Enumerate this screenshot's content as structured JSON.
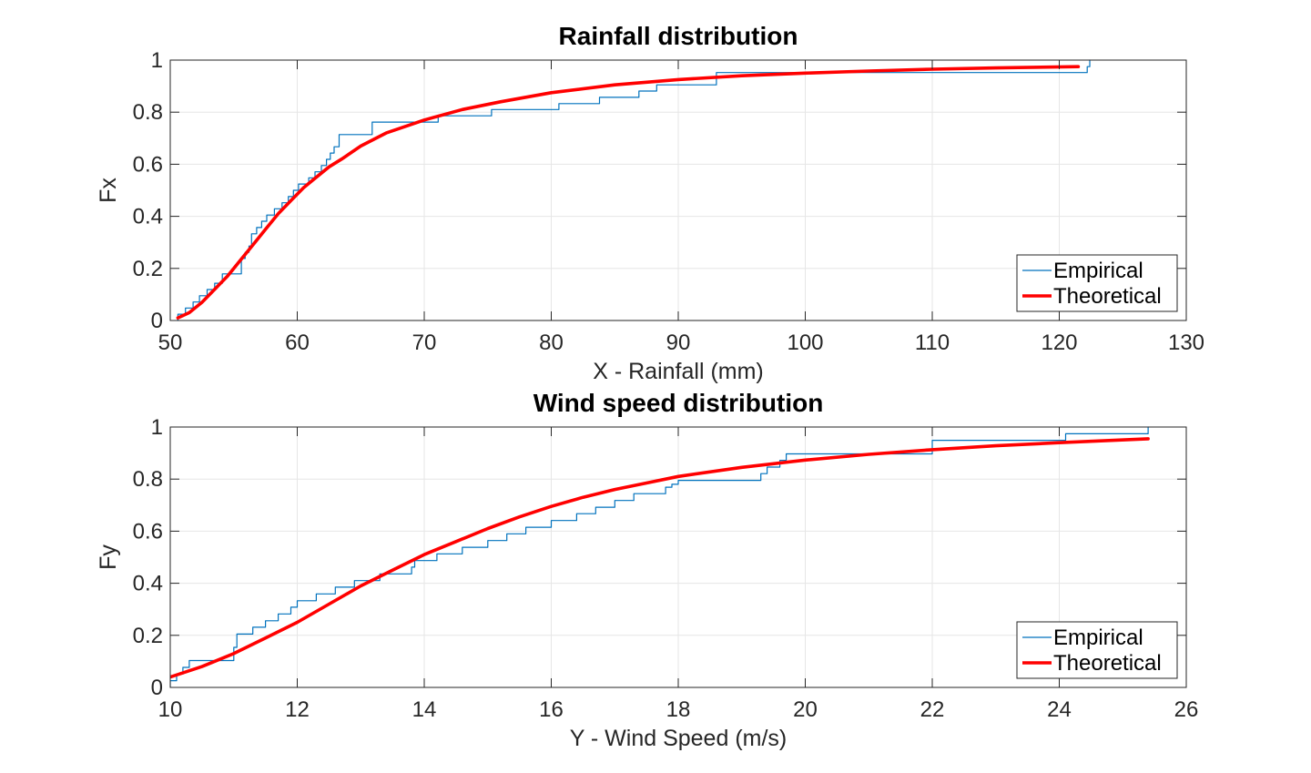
{
  "chart_data": [
    {
      "type": "line",
      "title": "Rainfall distribution",
      "xlabel": "X - Rainfall (mm)",
      "ylabel": "Fx",
      "xlim": [
        50,
        130
      ],
      "ylim": [
        0,
        1
      ],
      "xticks": [
        50,
        60,
        70,
        80,
        90,
        100,
        110,
        120,
        130
      ],
      "yticks": [
        0,
        0.2,
        0.4,
        0.6,
        0.8,
        1
      ],
      "xtick_labels": [
        "50",
        "60",
        "70",
        "80",
        "90",
        "100",
        "110",
        "120",
        "130"
      ],
      "ytick_labels": [
        "0",
        "0.2",
        "0.4",
        "0.6",
        "0.8",
        "1"
      ],
      "grid": true,
      "legend_position": "bottom-right",
      "series": [
        {
          "name": "Empirical",
          "style": "step",
          "color": "#0072BD",
          "x": [
            50.6,
            51.2,
            51.8,
            52.3,
            52.9,
            53.5,
            54.1,
            55.6,
            55.9,
            56.2,
            56.4,
            56.8,
            57.2,
            57.6,
            58.2,
            58.8,
            59.3,
            59.7,
            60.1,
            60.9,
            61.4,
            61.9,
            62.3,
            62.6,
            62.9,
            63.3,
            65.9,
            71.1,
            75.3,
            80.6,
            83.8,
            86.9,
            88.3,
            93.0,
            122.2,
            122.4
          ],
          "y": [
            0.024,
            0.048,
            0.071,
            0.095,
            0.119,
            0.143,
            0.179,
            0.238,
            0.262,
            0.286,
            0.333,
            0.357,
            0.381,
            0.405,
            0.429,
            0.452,
            0.476,
            0.5,
            0.524,
            0.548,
            0.571,
            0.595,
            0.619,
            0.643,
            0.667,
            0.714,
            0.762,
            0.786,
            0.81,
            0.833,
            0.857,
            0.881,
            0.905,
            0.952,
            0.975,
            1.0
          ]
        },
        {
          "name": "Theoretical",
          "style": "line",
          "color": "#FF0000",
          "x": [
            50.6,
            51.5,
            52.5,
            53.5,
            54.5,
            55.5,
            56.5,
            57.5,
            58.5,
            59.5,
            60.5,
            61.5,
            62.5,
            63.5,
            65,
            67,
            70,
            73,
            76,
            80,
            85,
            90,
            95,
            100,
            105,
            110,
            115,
            121.5
          ],
          "y": [
            0.01,
            0.03,
            0.07,
            0.12,
            0.17,
            0.23,
            0.29,
            0.35,
            0.41,
            0.46,
            0.51,
            0.55,
            0.59,
            0.62,
            0.67,
            0.72,
            0.77,
            0.81,
            0.84,
            0.875,
            0.905,
            0.925,
            0.94,
            0.95,
            0.958,
            0.965,
            0.97,
            0.975
          ]
        }
      ]
    },
    {
      "type": "line",
      "title": "Wind speed distribution",
      "xlabel": "Y - Wind Speed (m/s)",
      "ylabel": "Fy",
      "xlim": [
        10,
        26
      ],
      "ylim": [
        0,
        1
      ],
      "xticks": [
        10,
        12,
        14,
        16,
        18,
        20,
        22,
        24,
        26
      ],
      "yticks": [
        0,
        0.2,
        0.4,
        0.6,
        0.8,
        1
      ],
      "xtick_labels": [
        "10",
        "12",
        "14",
        "16",
        "18",
        "20",
        "22",
        "24",
        "26"
      ],
      "ytick_labels": [
        "0",
        "0.2",
        "0.4",
        "0.6",
        "0.8",
        "1"
      ],
      "grid": true,
      "legend_position": "bottom-right",
      "series": [
        {
          "name": "Empirical",
          "style": "step",
          "color": "#0072BD",
          "x": [
            10.0,
            10.1,
            10.2,
            10.3,
            11.0,
            11.05,
            11.3,
            11.5,
            11.7,
            11.9,
            12.0,
            12.3,
            12.6,
            12.9,
            13.3,
            13.8,
            13.85,
            14.2,
            14.6,
            15.0,
            15.3,
            15.6,
            16.0,
            16.4,
            16.7,
            17.0,
            17.3,
            17.8,
            17.9,
            18.0,
            19.3,
            19.4,
            19.6,
            19.7,
            22.0,
            24.1,
            25.4
          ],
          "y": [
            0.026,
            0.051,
            0.077,
            0.103,
            0.154,
            0.205,
            0.231,
            0.256,
            0.282,
            0.308,
            0.333,
            0.359,
            0.385,
            0.41,
            0.436,
            0.462,
            0.487,
            0.513,
            0.538,
            0.564,
            0.59,
            0.615,
            0.641,
            0.667,
            0.692,
            0.718,
            0.744,
            0.769,
            0.78,
            0.795,
            0.821,
            0.846,
            0.872,
            0.897,
            0.949,
            0.974,
            1.0
          ]
        },
        {
          "name": "Theoretical",
          "style": "line",
          "color": "#FF0000",
          "x": [
            10,
            10.5,
            11,
            11.5,
            12,
            12.5,
            13,
            13.5,
            14,
            14.5,
            15,
            15.5,
            16,
            16.5,
            17,
            17.5,
            18,
            19,
            20,
            21,
            22,
            23,
            24,
            25.4
          ],
          "y": [
            0.04,
            0.08,
            0.13,
            0.19,
            0.25,
            0.32,
            0.39,
            0.45,
            0.51,
            0.56,
            0.61,
            0.655,
            0.695,
            0.73,
            0.76,
            0.785,
            0.81,
            0.845,
            0.873,
            0.895,
            0.913,
            0.928,
            0.94,
            0.955
          ]
        }
      ]
    }
  ]
}
